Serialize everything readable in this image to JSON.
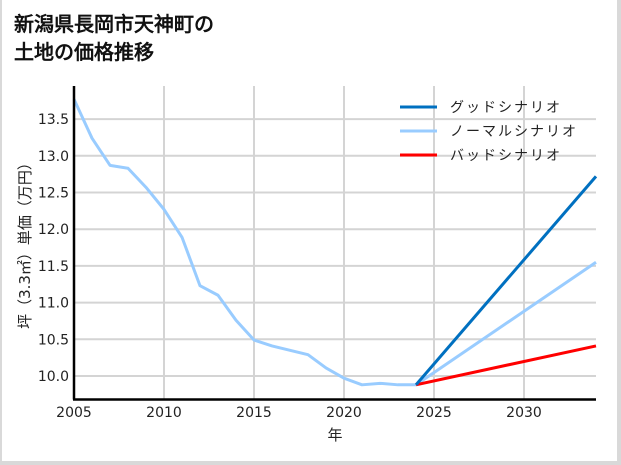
{
  "title": {
    "line1": "新潟県長岡市天神町の",
    "line2": "土地の価格推移"
  },
  "colors": {
    "good": "#0070C0",
    "normal": "#99CCFF",
    "bad": "#FF0000",
    "grid": "#d4d4d4",
    "axis": "#000000"
  },
  "chart_data": {
    "type": "line",
    "title": "新潟県長岡市天神町の土地の価格推移",
    "xlabel": "年",
    "ylabel": "坪（3.3㎡）単価（万円）",
    "xlim": [
      2005,
      2034
    ],
    "ylim": [
      9.7,
      13.9
    ],
    "x_ticks": [
      2005,
      2010,
      2015,
      2020,
      2025,
      2030
    ],
    "y_ticks": [
      10.0,
      10.5,
      11.0,
      11.5,
      12.0,
      12.5,
      13.0,
      13.5
    ],
    "grid": true,
    "legend_position": "upper right",
    "series": [
      {
        "name": "ノーマルシナリオ",
        "role": "historical",
        "color": "#99CCFF",
        "x": [
          2005,
          2006,
          2007,
          2008,
          2009,
          2010,
          2011,
          2012,
          2013,
          2014,
          2015,
          2016,
          2017,
          2018,
          2019,
          2020,
          2021,
          2022,
          2023,
          2024
        ],
        "values": [
          13.77,
          13.24,
          12.87,
          12.83,
          12.57,
          12.27,
          11.89,
          11.23,
          11.1,
          10.76,
          10.49,
          10.41,
          10.35,
          10.29,
          10.11,
          9.97,
          9.88,
          9.9,
          9.88,
          9.88
        ]
      },
      {
        "name": "グッドシナリオ",
        "color": "#0070C0",
        "x": [
          2024,
          2034
        ],
        "values": [
          9.88,
          12.72
        ]
      },
      {
        "name": "ノーマルシナリオ",
        "color": "#99CCFF",
        "x": [
          2024,
          2034
        ],
        "values": [
          9.88,
          11.55
        ]
      },
      {
        "name": "バッドシナリオ",
        "color": "#FF0000",
        "x": [
          2024,
          2034
        ],
        "values": [
          9.88,
          10.41
        ]
      }
    ]
  },
  "legend": [
    {
      "label": "グッドシナリオ",
      "color": "#0070C0"
    },
    {
      "label": "ノーマルシナリオ",
      "color": "#99CCFF"
    },
    {
      "label": "バッドシナリオ",
      "color": "#FF0000"
    }
  ],
  "axes": {
    "xlabel": "年",
    "ylabel": "坪（3.3㎡）単価（万円）",
    "x_tick_labels": [
      "2005",
      "2010",
      "2015",
      "2020",
      "2025",
      "2030"
    ],
    "y_tick_labels": [
      "10.0",
      "10.5",
      "11.0",
      "11.5",
      "12.0",
      "12.5",
      "13.0",
      "13.5"
    ]
  }
}
